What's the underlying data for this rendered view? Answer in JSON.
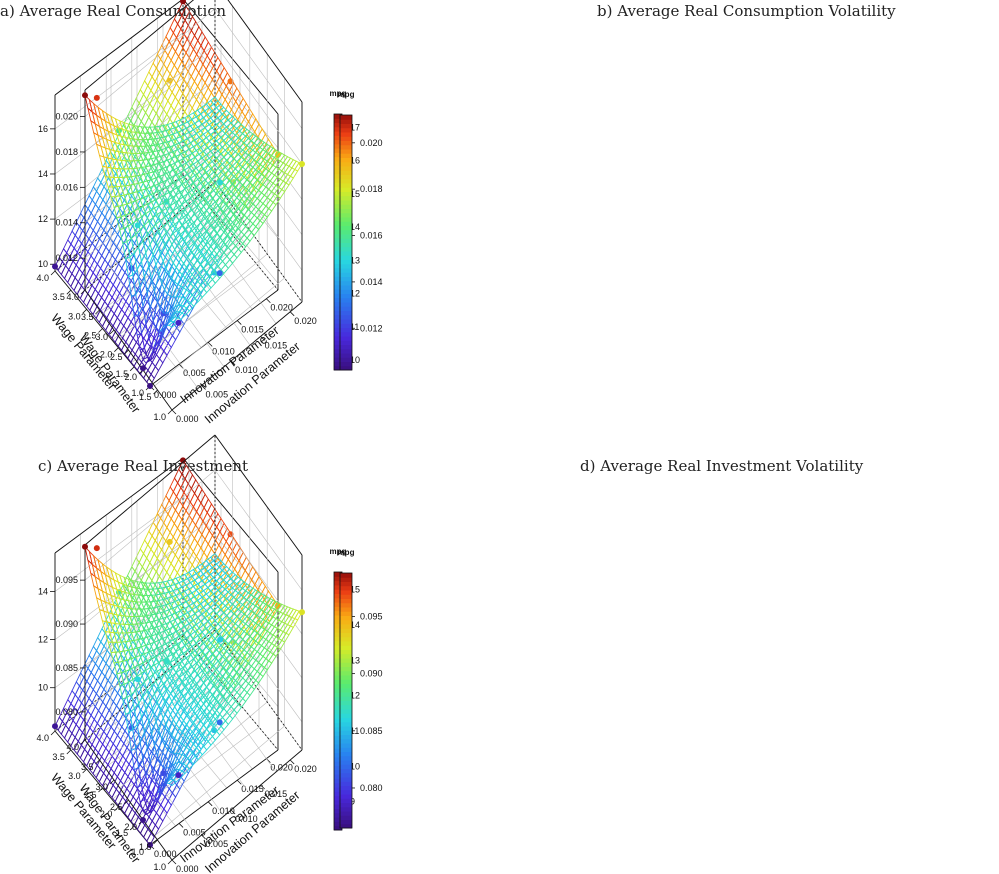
{
  "panels": [
    {
      "title": "a) Average Real Consumption",
      "chart_data": {
        "type": "surface3d",
        "x_label": "Innovation Parameter",
        "y_label": "Wage Parameter",
        "x_ticks": [
          "0.000",
          "0.005",
          "0.010",
          "0.015",
          "0.020"
        ],
        "y_ticks": [
          "1.0",
          "1.5",
          "2.0",
          "2.5",
          "3.0",
          "3.5",
          "4.0"
        ],
        "z_ticks": [
          "10",
          "12",
          "14",
          "16"
        ],
        "zlim": [
          9.7,
          17.5
        ],
        "colorbar_title": "mpg",
        "colorbar_ticks": [
          "10",
          "11",
          "12",
          "13",
          "14",
          "15",
          "16",
          "17"
        ],
        "colorbar_range": [
          9.7,
          17.4
        ],
        "surface": {
          "kind": "bilinear",
          "z00": 9.7,
          "z10": 15.7,
          "z01": 9.9,
          "z11": 17.4
        },
        "points": [
          {
            "x": 0.0,
            "y": 1.0,
            "z": 9.7
          },
          {
            "x": 0.0,
            "y": 4.0,
            "z": 9.9
          },
          {
            "x": 0.022,
            "y": 1.0,
            "z": 15.7
          },
          {
            "x": 0.022,
            "y": 4.0,
            "z": 17.4
          },
          {
            "x": 0.022,
            "y": 2.5,
            "z": 16.4
          },
          {
            "x": 0.011,
            "y": 4.0,
            "z": 13.8
          },
          {
            "x": 0.011,
            "y": 1.0,
            "z": 12.6
          },
          {
            "x": 0.011,
            "y": 2.5,
            "z": 13.2
          },
          {
            "x": 0.005,
            "y": 2.5,
            "z": 11.4
          },
          {
            "x": 0.017,
            "y": 1.5,
            "z": 14.6
          },
          {
            "x": 0.017,
            "y": 3.5,
            "z": 15.7
          },
          {
            "x": 0.005,
            "y": 1.5,
            "z": 11.1
          }
        ]
      }
    },
    {
      "title": "b) Average Real Consumption Volatility",
      "chart_data": {
        "type": "surface3d",
        "x_label": "Innovation Parameter",
        "y_label": "Wage Parameter",
        "x_ticks": [
          "0.000",
          "0.005",
          "0.010",
          "0.015",
          "0.020"
        ],
        "y_ticks": [
          "1.0",
          "1.5",
          "2.0",
          "2.5",
          "3.0",
          "3.5",
          "4.0"
        ],
        "z_ticks": [
          "0.012",
          "0.014",
          "0.016",
          "0.018",
          "0.020"
        ],
        "zlim": [
          0.0102,
          0.0215
        ],
        "colorbar_title": "mpg",
        "colorbar_ticks": [
          "0.012",
          "0.014",
          "0.016",
          "0.018",
          "0.020"
        ],
        "colorbar_range": [
          0.0102,
          0.0212
        ],
        "surface": {
          "kind": "bowl",
          "base": 0.015,
          "corner": 0.0212,
          "low": 0.0103,
          "far": 0.018
        },
        "points": [
          {
            "x": 0.0,
            "y": 4.0,
            "z": 0.0212
          },
          {
            "x": 0.002,
            "y": 4.0,
            "z": 0.0205
          },
          {
            "x": 0.022,
            "y": 1.0,
            "z": 0.018
          },
          {
            "x": 0.0,
            "y": 2.0,
            "z": 0.0103
          },
          {
            "x": 0.006,
            "y": 2.0,
            "z": 0.0112
          },
          {
            "x": 0.012,
            "y": 1.8,
            "z": 0.0128
          },
          {
            "x": 0.016,
            "y": 2.6,
            "z": 0.015
          },
          {
            "x": 0.004,
            "y": 3.0,
            "z": 0.015
          }
        ]
      }
    },
    {
      "title": "c) Average Real Investment",
      "chart_data": {
        "type": "surface3d",
        "x_label": "Innovation Parameter",
        "y_label": "Wage Parameter",
        "x_ticks": [
          "0.000",
          "0.005",
          "0.010",
          "0.015",
          "0.020"
        ],
        "y_ticks": [
          "1.0",
          "1.5",
          "2.0",
          "2.5",
          "3.0",
          "3.5",
          "4.0"
        ],
        "z_ticks": [
          "10",
          "12",
          "14"
        ],
        "zlim": [
          8.2,
          15.6
        ],
        "colorbar_title": "mpg",
        "colorbar_ticks": [
          "9",
          "10",
          "11",
          "12",
          "13",
          "14",
          "15"
        ],
        "colorbar_range": [
          8.2,
          15.5
        ],
        "surface": {
          "kind": "bilinear",
          "z00": 8.2,
          "z10": 14.2,
          "z01": 8.4,
          "z11": 15.5
        },
        "points": [
          {
            "x": 0.0,
            "y": 1.0,
            "z": 8.2
          },
          {
            "x": 0.0,
            "y": 4.0,
            "z": 8.4
          },
          {
            "x": 0.022,
            "y": 1.0,
            "z": 14.2
          },
          {
            "x": 0.022,
            "y": 4.0,
            "z": 15.5
          },
          {
            "x": 0.022,
            "y": 2.5,
            "z": 14.8
          },
          {
            "x": 0.011,
            "y": 4.0,
            "z": 12.0
          },
          {
            "x": 0.011,
            "y": 1.0,
            "z": 11.0
          },
          {
            "x": 0.011,
            "y": 2.5,
            "z": 11.5
          },
          {
            "x": 0.005,
            "y": 2.5,
            "z": 9.8
          },
          {
            "x": 0.017,
            "y": 1.5,
            "z": 12.8
          },
          {
            "x": 0.017,
            "y": 3.5,
            "z": 13.8
          },
          {
            "x": 0.005,
            "y": 1.5,
            "z": 9.5
          }
        ]
      }
    },
    {
      "title": "d) Average Real Investment Volatility",
      "chart_data": {
        "type": "surface3d",
        "x_label": "Innovation Parameter",
        "y_label": "Wage Parameter",
        "x_ticks": [
          "0.000",
          "0.005",
          "0.010",
          "0.015",
          "0.020"
        ],
        "y_ticks": [
          "1.0",
          "1.5",
          "2.0",
          "2.5",
          "3.0",
          "3.5",
          "4.0"
        ],
        "z_ticks": [
          "0.080",
          "0.085",
          "0.090",
          "0.095"
        ],
        "zlim": [
          0.0768,
          0.099
        ],
        "colorbar_title": "mpg",
        "colorbar_ticks": [
          "0.080",
          "0.085",
          "0.090",
          "0.095"
        ],
        "colorbar_range": [
          0.0765,
          0.0988
        ],
        "surface": {
          "kind": "bowl",
          "base": 0.0855,
          "corner": 0.0988,
          "low": 0.0768,
          "far": 0.0925
        },
        "points": [
          {
            "x": 0.0,
            "y": 4.0,
            "z": 0.0988
          },
          {
            "x": 0.002,
            "y": 4.0,
            "z": 0.0975
          },
          {
            "x": 0.022,
            "y": 1.0,
            "z": 0.0925
          },
          {
            "x": 0.0,
            "y": 2.0,
            "z": 0.0768
          },
          {
            "x": 0.006,
            "y": 2.0,
            "z": 0.0785
          },
          {
            "x": 0.012,
            "y": 1.8,
            "z": 0.082
          },
          {
            "x": 0.016,
            "y": 2.6,
            "z": 0.0855
          },
          {
            "x": 0.004,
            "y": 3.0,
            "z": 0.086
          }
        ]
      }
    }
  ]
}
